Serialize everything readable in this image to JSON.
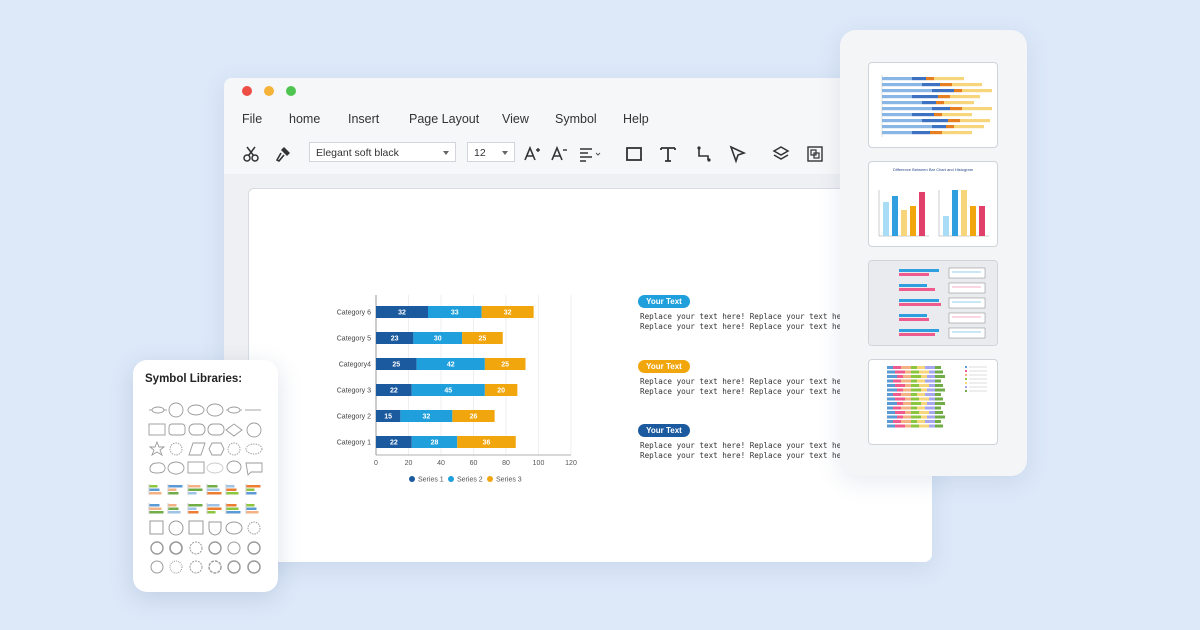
{
  "window": {
    "menu": [
      "File",
      "home",
      "Insert",
      "Page Layout",
      "View",
      "Symbol",
      "Help"
    ],
    "toolbar": {
      "font_family": "Elegant soft black",
      "font_size": "12",
      "icons": [
        "cut-icon",
        "format-painter-icon",
        "increase-font-icon",
        "decrease-font-icon",
        "align-icon",
        "rectangle-icon",
        "text-icon",
        "connector-icon",
        "select-icon",
        "layers-icon",
        "group-icon"
      ]
    }
  },
  "chart_data": {
    "type": "bar",
    "orientation": "horizontal",
    "stacked": true,
    "categories": [
      "Category 1",
      "Category 2",
      "Category 3",
      "Category4",
      "Category 5",
      "Category 6"
    ],
    "series": [
      {
        "name": "Series 1",
        "values": [
          22,
          15,
          22,
          25,
          23,
          32
        ],
        "color": "#1b5a9e"
      },
      {
        "name": "Series 2",
        "values": [
          28,
          32,
          45,
          42,
          30,
          33
        ],
        "color": "#1fa0dc"
      },
      {
        "name": "Series 3",
        "values": [
          36,
          26,
          20,
          25,
          25,
          32
        ],
        "color": "#f2a60d"
      }
    ],
    "xlim": [
      0,
      120
    ],
    "xticks": [
      "0",
      "20",
      "40",
      "60",
      "80",
      "100",
      "120"
    ],
    "grid": true,
    "legend": "bottom"
  },
  "text_blocks": [
    {
      "label": "Your Text",
      "color": "#1fa0dc",
      "lines": [
        [
          "Replace your text here!",
          "Replace your text here!"
        ],
        [
          "Replace your text here!",
          "Replace your text here!"
        ]
      ]
    },
    {
      "label": "Your Text",
      "color": "#f2a60d",
      "lines": [
        [
          "Replace your text here!",
          "Replace your text here!"
        ],
        [
          "Replace your text here!",
          "Replace your text here!"
        ]
      ]
    },
    {
      "label": "Your Text",
      "color": "#1b5a9e",
      "lines": [
        [
          "Replace your text here!",
          "Replace your text here!"
        ],
        [
          "Replace your text here!",
          "Replace your text here!"
        ]
      ]
    }
  ],
  "symbol_panel": {
    "title": "Symbol Libraries:"
  },
  "templates": {
    "t2_title": "Difference Between Bar Chart and Histogram"
  }
}
